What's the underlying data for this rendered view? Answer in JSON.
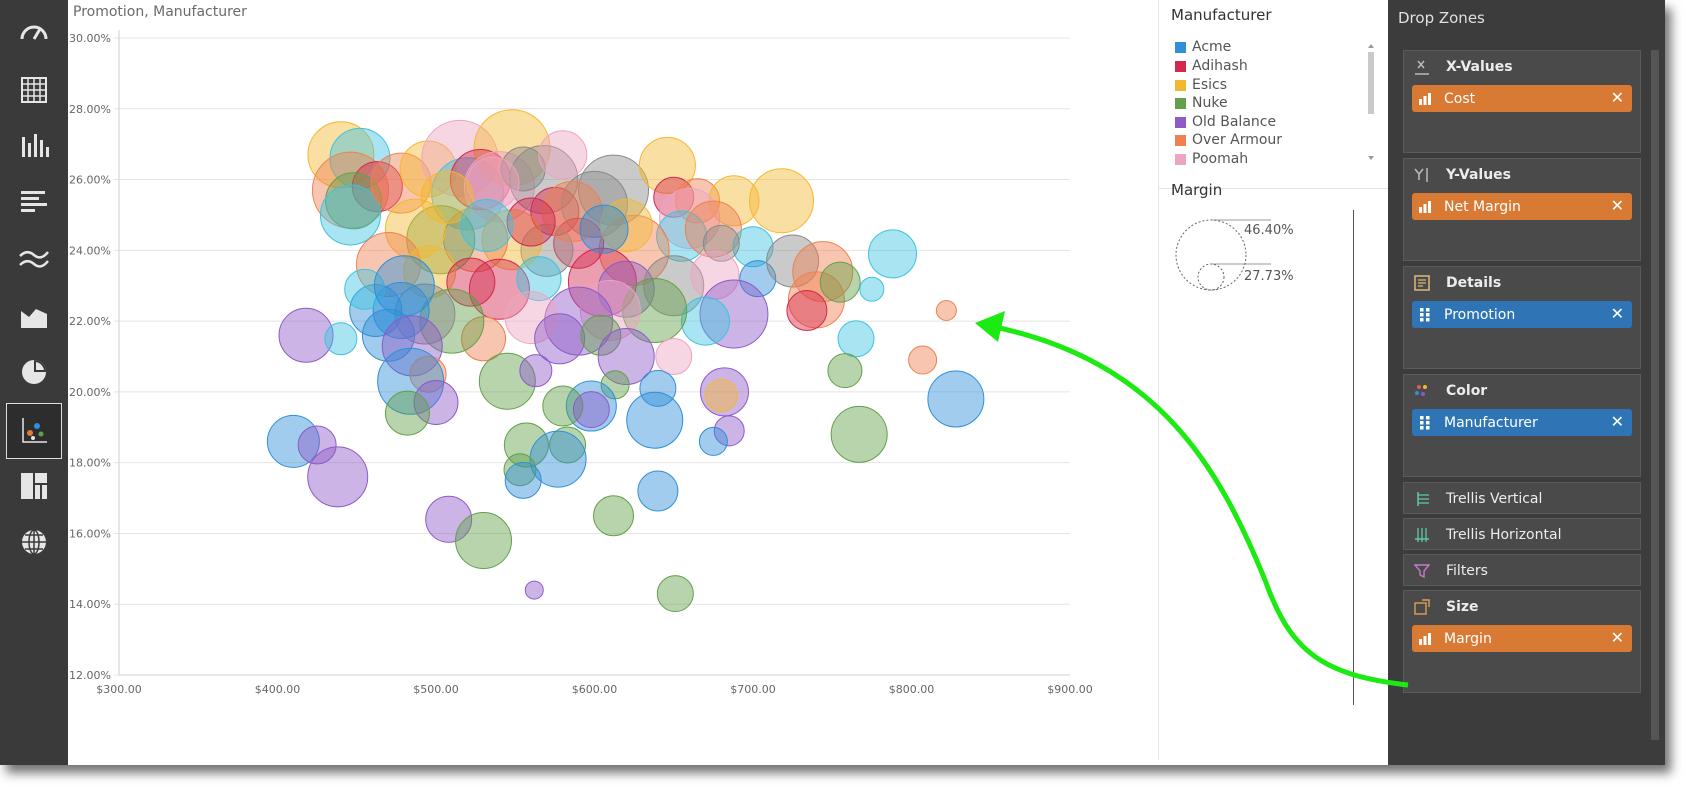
{
  "chart_title": "Promotion, Manufacturer",
  "rail": {
    "items": [
      {
        "name": "gauge-icon"
      },
      {
        "name": "grid-icon"
      },
      {
        "name": "column-chart-icon"
      },
      {
        "name": "bar-chart-icon"
      },
      {
        "name": "line-chart-icon"
      },
      {
        "name": "area-chart-icon"
      },
      {
        "name": "pie-chart-icon"
      },
      {
        "name": "scatter-chart-icon",
        "active": true
      },
      {
        "name": "treemap-icon"
      },
      {
        "name": "globe-icon"
      }
    ]
  },
  "legend": {
    "color_title": "Manufacturer",
    "items": [
      {
        "label": "Acme",
        "color": "#2f8fd8"
      },
      {
        "label": "Adihash",
        "color": "#d3294e"
      },
      {
        "label": "Esics",
        "color": "#f5b731"
      },
      {
        "label": "Nuke",
        "color": "#62a04a"
      },
      {
        "label": "Old Balance",
        "color": "#8d5ac8"
      },
      {
        "label": "Over Armour",
        "color": "#ef8050"
      },
      {
        "label": "Poomah",
        "color": "#eea3c1"
      }
    ],
    "size_title": "Margin",
    "size_max": "46.40%",
    "size_min": "27.73%"
  },
  "drop_zones": {
    "title": "Drop Zones",
    "x_values": {
      "label": "X-Values",
      "field": "Cost"
    },
    "y_values": {
      "label": "Y-Values",
      "field": "Net Margin"
    },
    "details": {
      "label": "Details",
      "field": "Promotion"
    },
    "color": {
      "label": "Color",
      "field": "Manufacturer"
    },
    "trellis_vertical": "Trellis Vertical",
    "trellis_horizontal": "Trellis Horizontal",
    "filters": "Filters",
    "size": {
      "label": "Size",
      "field": "Margin"
    },
    "remove_glyph": "✕"
  },
  "colors": {
    "cyan": "#3ec3e0",
    "grey": "#8a8a8a",
    "arrow": "#1eea13"
  },
  "chart_data": {
    "type": "scatter",
    "title": "Promotion, Manufacturer",
    "x_ticks": [
      "$300.00",
      "$400.00",
      "$500.00",
      "$600.00",
      "$700.00",
      "$800.00",
      "$900.00"
    ],
    "y_ticks": [
      "12.00%",
      "14.00%",
      "16.00%",
      "18.00%",
      "20.00%",
      "22.00%",
      "24.00%",
      "26.00%",
      "28.00%",
      "30.00%"
    ],
    "xlim": [
      300,
      900
    ],
    "ylim": [
      12,
      30
    ],
    "grid": true,
    "points": [
      {
        "x": 440,
        "y": 26.7,
        "r": 33,
        "c": "esics"
      },
      {
        "x": 452,
        "y": 26.6,
        "r": 30,
        "c": "cyan"
      },
      {
        "x": 446,
        "y": 25.7,
        "r": 38,
        "c": "overarmour"
      },
      {
        "x": 463,
        "y": 25.8,
        "r": 25,
        "c": "adihash"
      },
      {
        "x": 448,
        "y": 25.4,
        "r": 28,
        "c": "nuke"
      },
      {
        "x": 446,
        "y": 25.0,
        "r": 30,
        "c": "cyan"
      },
      {
        "x": 478,
        "y": 25.9,
        "r": 30,
        "c": "overarmour"
      },
      {
        "x": 495,
        "y": 26.3,
        "r": 28,
        "c": "esics"
      },
      {
        "x": 515,
        "y": 26.6,
        "r": 38,
        "c": "poomah"
      },
      {
        "x": 520,
        "y": 25.6,
        "r": 36,
        "c": "cyan"
      },
      {
        "x": 548,
        "y": 26.9,
        "r": 38,
        "c": "esics"
      },
      {
        "x": 528,
        "y": 26.0,
        "r": 30,
        "c": "adihash"
      },
      {
        "x": 540,
        "y": 25.8,
        "r": 35,
        "c": "poomah"
      },
      {
        "x": 555,
        "y": 26.3,
        "r": 22,
        "c": "grey"
      },
      {
        "x": 568,
        "y": 26.0,
        "r": 34,
        "c": "grey"
      },
      {
        "x": 580,
        "y": 26.7,
        "r": 24,
        "c": "poomah"
      },
      {
        "x": 575,
        "y": 25.1,
        "r": 24,
        "c": "adihash"
      },
      {
        "x": 612,
        "y": 25.7,
        "r": 35,
        "c": "grey"
      },
      {
        "x": 600,
        "y": 25.3,
        "r": 33,
        "c": "grey"
      },
      {
        "x": 646,
        "y": 26.4,
        "r": 28,
        "c": "esics"
      },
      {
        "x": 650,
        "y": 25.5,
        "r": 20,
        "c": "adihash"
      },
      {
        "x": 665,
        "y": 25.4,
        "r": 22,
        "c": "overarmour"
      },
      {
        "x": 688,
        "y": 25.4,
        "r": 25,
        "c": "esics"
      },
      {
        "x": 718,
        "y": 25.4,
        "r": 32,
        "c": "esics"
      },
      {
        "x": 660,
        "y": 24.9,
        "r": 30,
        "c": "poomah"
      },
      {
        "x": 655,
        "y": 24.4,
        "r": 25,
        "c": "cyan"
      },
      {
        "x": 675,
        "y": 24.6,
        "r": 28,
        "c": "overarmour"
      },
      {
        "x": 700,
        "y": 24.1,
        "r": 20,
        "c": "cyan"
      },
      {
        "x": 680,
        "y": 24.2,
        "r": 18,
        "c": "grey"
      },
      {
        "x": 625,
        "y": 24.0,
        "r": 35,
        "c": "overarmour"
      },
      {
        "x": 590,
        "y": 24.2,
        "r": 25,
        "c": "adihash"
      },
      {
        "x": 570,
        "y": 24.0,
        "r": 26,
        "c": "grey"
      },
      {
        "x": 548,
        "y": 24.3,
        "r": 30,
        "c": "esics"
      },
      {
        "x": 525,
        "y": 24.3,
        "r": 32,
        "c": "overarmour"
      },
      {
        "x": 503,
        "y": 24.3,
        "r": 34,
        "c": "nuke"
      },
      {
        "x": 487,
        "y": 24.6,
        "r": 30,
        "c": "esics"
      },
      {
        "x": 470,
        "y": 23.6,
        "r": 32,
        "c": "overarmour"
      },
      {
        "x": 496,
        "y": 23.4,
        "r": 26,
        "c": "esics"
      },
      {
        "x": 522,
        "y": 23.1,
        "r": 24,
        "c": "adihash"
      },
      {
        "x": 540,
        "y": 22.9,
        "r": 30,
        "c": "adihash"
      },
      {
        "x": 565,
        "y": 23.2,
        "r": 22,
        "c": "cyan"
      },
      {
        "x": 605,
        "y": 23.1,
        "r": 34,
        "c": "adihash"
      },
      {
        "x": 620,
        "y": 22.9,
        "r": 28,
        "c": "oldbalance"
      },
      {
        "x": 650,
        "y": 23.0,
        "r": 30,
        "c": "grey"
      },
      {
        "x": 676,
        "y": 23.3,
        "r": 24,
        "c": "poomah"
      },
      {
        "x": 703,
        "y": 23.2,
        "r": 18,
        "c": "acme"
      },
      {
        "x": 725,
        "y": 23.7,
        "r": 26,
        "c": "grey"
      },
      {
        "x": 744,
        "y": 23.4,
        "r": 30,
        "c": "overarmour"
      },
      {
        "x": 740,
        "y": 22.6,
        "r": 28,
        "c": "overarmour"
      },
      {
        "x": 734,
        "y": 22.3,
        "r": 20,
        "c": "adihash"
      },
      {
        "x": 755,
        "y": 23.1,
        "r": 20,
        "c": "nuke"
      },
      {
        "x": 788,
        "y": 23.9,
        "r": 24,
        "c": "cyan"
      },
      {
        "x": 775,
        "y": 22.9,
        "r": 12,
        "c": "cyan"
      },
      {
        "x": 822,
        "y": 22.3,
        "r": 10,
        "c": "overarmour"
      },
      {
        "x": 807,
        "y": 20.9,
        "r": 14,
        "c": "overarmour"
      },
      {
        "x": 765,
        "y": 21.5,
        "r": 18,
        "c": "cyan"
      },
      {
        "x": 758,
        "y": 20.6,
        "r": 17,
        "c": "nuke"
      },
      {
        "x": 688,
        "y": 22.2,
        "r": 34,
        "c": "oldbalance"
      },
      {
        "x": 670,
        "y": 22.0,
        "r": 24,
        "c": "cyan"
      },
      {
        "x": 638,
        "y": 22.3,
        "r": 32,
        "c": "nuke"
      },
      {
        "x": 610,
        "y": 22.3,
        "r": 30,
        "c": "poomah"
      },
      {
        "x": 590,
        "y": 22.0,
        "r": 34,
        "c": "oldbalance"
      },
      {
        "x": 560,
        "y": 22.1,
        "r": 26,
        "c": "poomah"
      },
      {
        "x": 530,
        "y": 21.5,
        "r": 22,
        "c": "overarmour"
      },
      {
        "x": 510,
        "y": 22.0,
        "r": 32,
        "c": "nuke"
      },
      {
        "x": 493,
        "y": 22.2,
        "r": 30,
        "c": "grey"
      },
      {
        "x": 478,
        "y": 22.3,
        "r": 28,
        "c": "acme"
      },
      {
        "x": 462,
        "y": 22.3,
        "r": 26,
        "c": "acme"
      },
      {
        "x": 455,
        "y": 22.9,
        "r": 20,
        "c": "cyan"
      },
      {
        "x": 480,
        "y": 23.0,
        "r": 30,
        "c": "acme"
      },
      {
        "x": 470,
        "y": 21.6,
        "r": 26,
        "c": "acme"
      },
      {
        "x": 418,
        "y": 21.6,
        "r": 27,
        "c": "oldbalance"
      },
      {
        "x": 440,
        "y": 21.5,
        "r": 16,
        "c": "cyan"
      },
      {
        "x": 485,
        "y": 21.3,
        "r": 30,
        "c": "oldbalance"
      },
      {
        "x": 495,
        "y": 20.5,
        "r": 18,
        "c": "overarmour"
      },
      {
        "x": 484,
        "y": 20.3,
        "r": 33,
        "c": "acme"
      },
      {
        "x": 500,
        "y": 19.7,
        "r": 22,
        "c": "oldbalance"
      },
      {
        "x": 482,
        "y": 19.4,
        "r": 22,
        "c": "nuke"
      },
      {
        "x": 545,
        "y": 20.3,
        "r": 28,
        "c": "nuke"
      },
      {
        "x": 563,
        "y": 20.6,
        "r": 16,
        "c": "oldbalance"
      },
      {
        "x": 578,
        "y": 21.5,
        "r": 25,
        "c": "oldbalance"
      },
      {
        "x": 604,
        "y": 21.6,
        "r": 20,
        "c": "nuke"
      },
      {
        "x": 620,
        "y": 21.0,
        "r": 28,
        "c": "oldbalance"
      },
      {
        "x": 650,
        "y": 21.0,
        "r": 18,
        "c": "poomah"
      },
      {
        "x": 640,
        "y": 20.1,
        "r": 18,
        "c": "acme"
      },
      {
        "x": 613,
        "y": 20.2,
        "r": 14,
        "c": "nuke"
      },
      {
        "x": 598,
        "y": 19.6,
        "r": 25,
        "c": "acme"
      },
      {
        "x": 580,
        "y": 19.6,
        "r": 20,
        "c": "nuke"
      },
      {
        "x": 598,
        "y": 19.5,
        "r": 18,
        "c": "oldbalance"
      },
      {
        "x": 638,
        "y": 19.2,
        "r": 28,
        "c": "acme"
      },
      {
        "x": 682,
        "y": 20.0,
        "r": 24,
        "c": "oldbalance"
      },
      {
        "x": 680,
        "y": 19.9,
        "r": 16,
        "c": "esics"
      },
      {
        "x": 685,
        "y": 18.9,
        "r": 15,
        "c": "oldbalance"
      },
      {
        "x": 675,
        "y": 18.6,
        "r": 14,
        "c": "acme"
      },
      {
        "x": 767,
        "y": 18.8,
        "r": 28,
        "c": "nuke"
      },
      {
        "x": 828,
        "y": 19.8,
        "r": 28,
        "c": "acme"
      },
      {
        "x": 557,
        "y": 18.5,
        "r": 22,
        "c": "nuke"
      },
      {
        "x": 583,
        "y": 18.5,
        "r": 18,
        "c": "nuke"
      },
      {
        "x": 577,
        "y": 18.1,
        "r": 28,
        "c": "acme"
      },
      {
        "x": 553,
        "y": 17.8,
        "r": 16,
        "c": "nuke"
      },
      {
        "x": 555,
        "y": 17.5,
        "r": 18,
        "c": "acme"
      },
      {
        "x": 640,
        "y": 17.2,
        "r": 20,
        "c": "acme"
      },
      {
        "x": 410,
        "y": 18.6,
        "r": 26,
        "c": "acme"
      },
      {
        "x": 425,
        "y": 18.5,
        "r": 19,
        "c": "oldbalance"
      },
      {
        "x": 438,
        "y": 17.6,
        "r": 30,
        "c": "oldbalance"
      },
      {
        "x": 508,
        "y": 16.4,
        "r": 23,
        "c": "oldbalance"
      },
      {
        "x": 530,
        "y": 15.8,
        "r": 28,
        "c": "nuke"
      },
      {
        "x": 612,
        "y": 16.5,
        "r": 20,
        "c": "nuke"
      },
      {
        "x": 651,
        "y": 14.3,
        "r": 18,
        "c": "nuke"
      },
      {
        "x": 562,
        "y": 14.4,
        "r": 9,
        "c": "oldbalance"
      },
      {
        "x": 536,
        "y": 25.9,
        "r": 26,
        "c": "poomah"
      },
      {
        "x": 507,
        "y": 25.5,
        "r": 26,
        "c": "esics"
      },
      {
        "x": 586,
        "y": 25.1,
        "r": 30,
        "c": "overarmour"
      },
      {
        "x": 620,
        "y": 24.7,
        "r": 26,
        "c": "esics"
      },
      {
        "x": 606,
        "y": 24.6,
        "r": 24,
        "c": "acme"
      },
      {
        "x": 560,
        "y": 24.8,
        "r": 24,
        "c": "adihash"
      },
      {
        "x": 532,
        "y": 24.7,
        "r": 26,
        "c": "cyan"
      }
    ]
  }
}
